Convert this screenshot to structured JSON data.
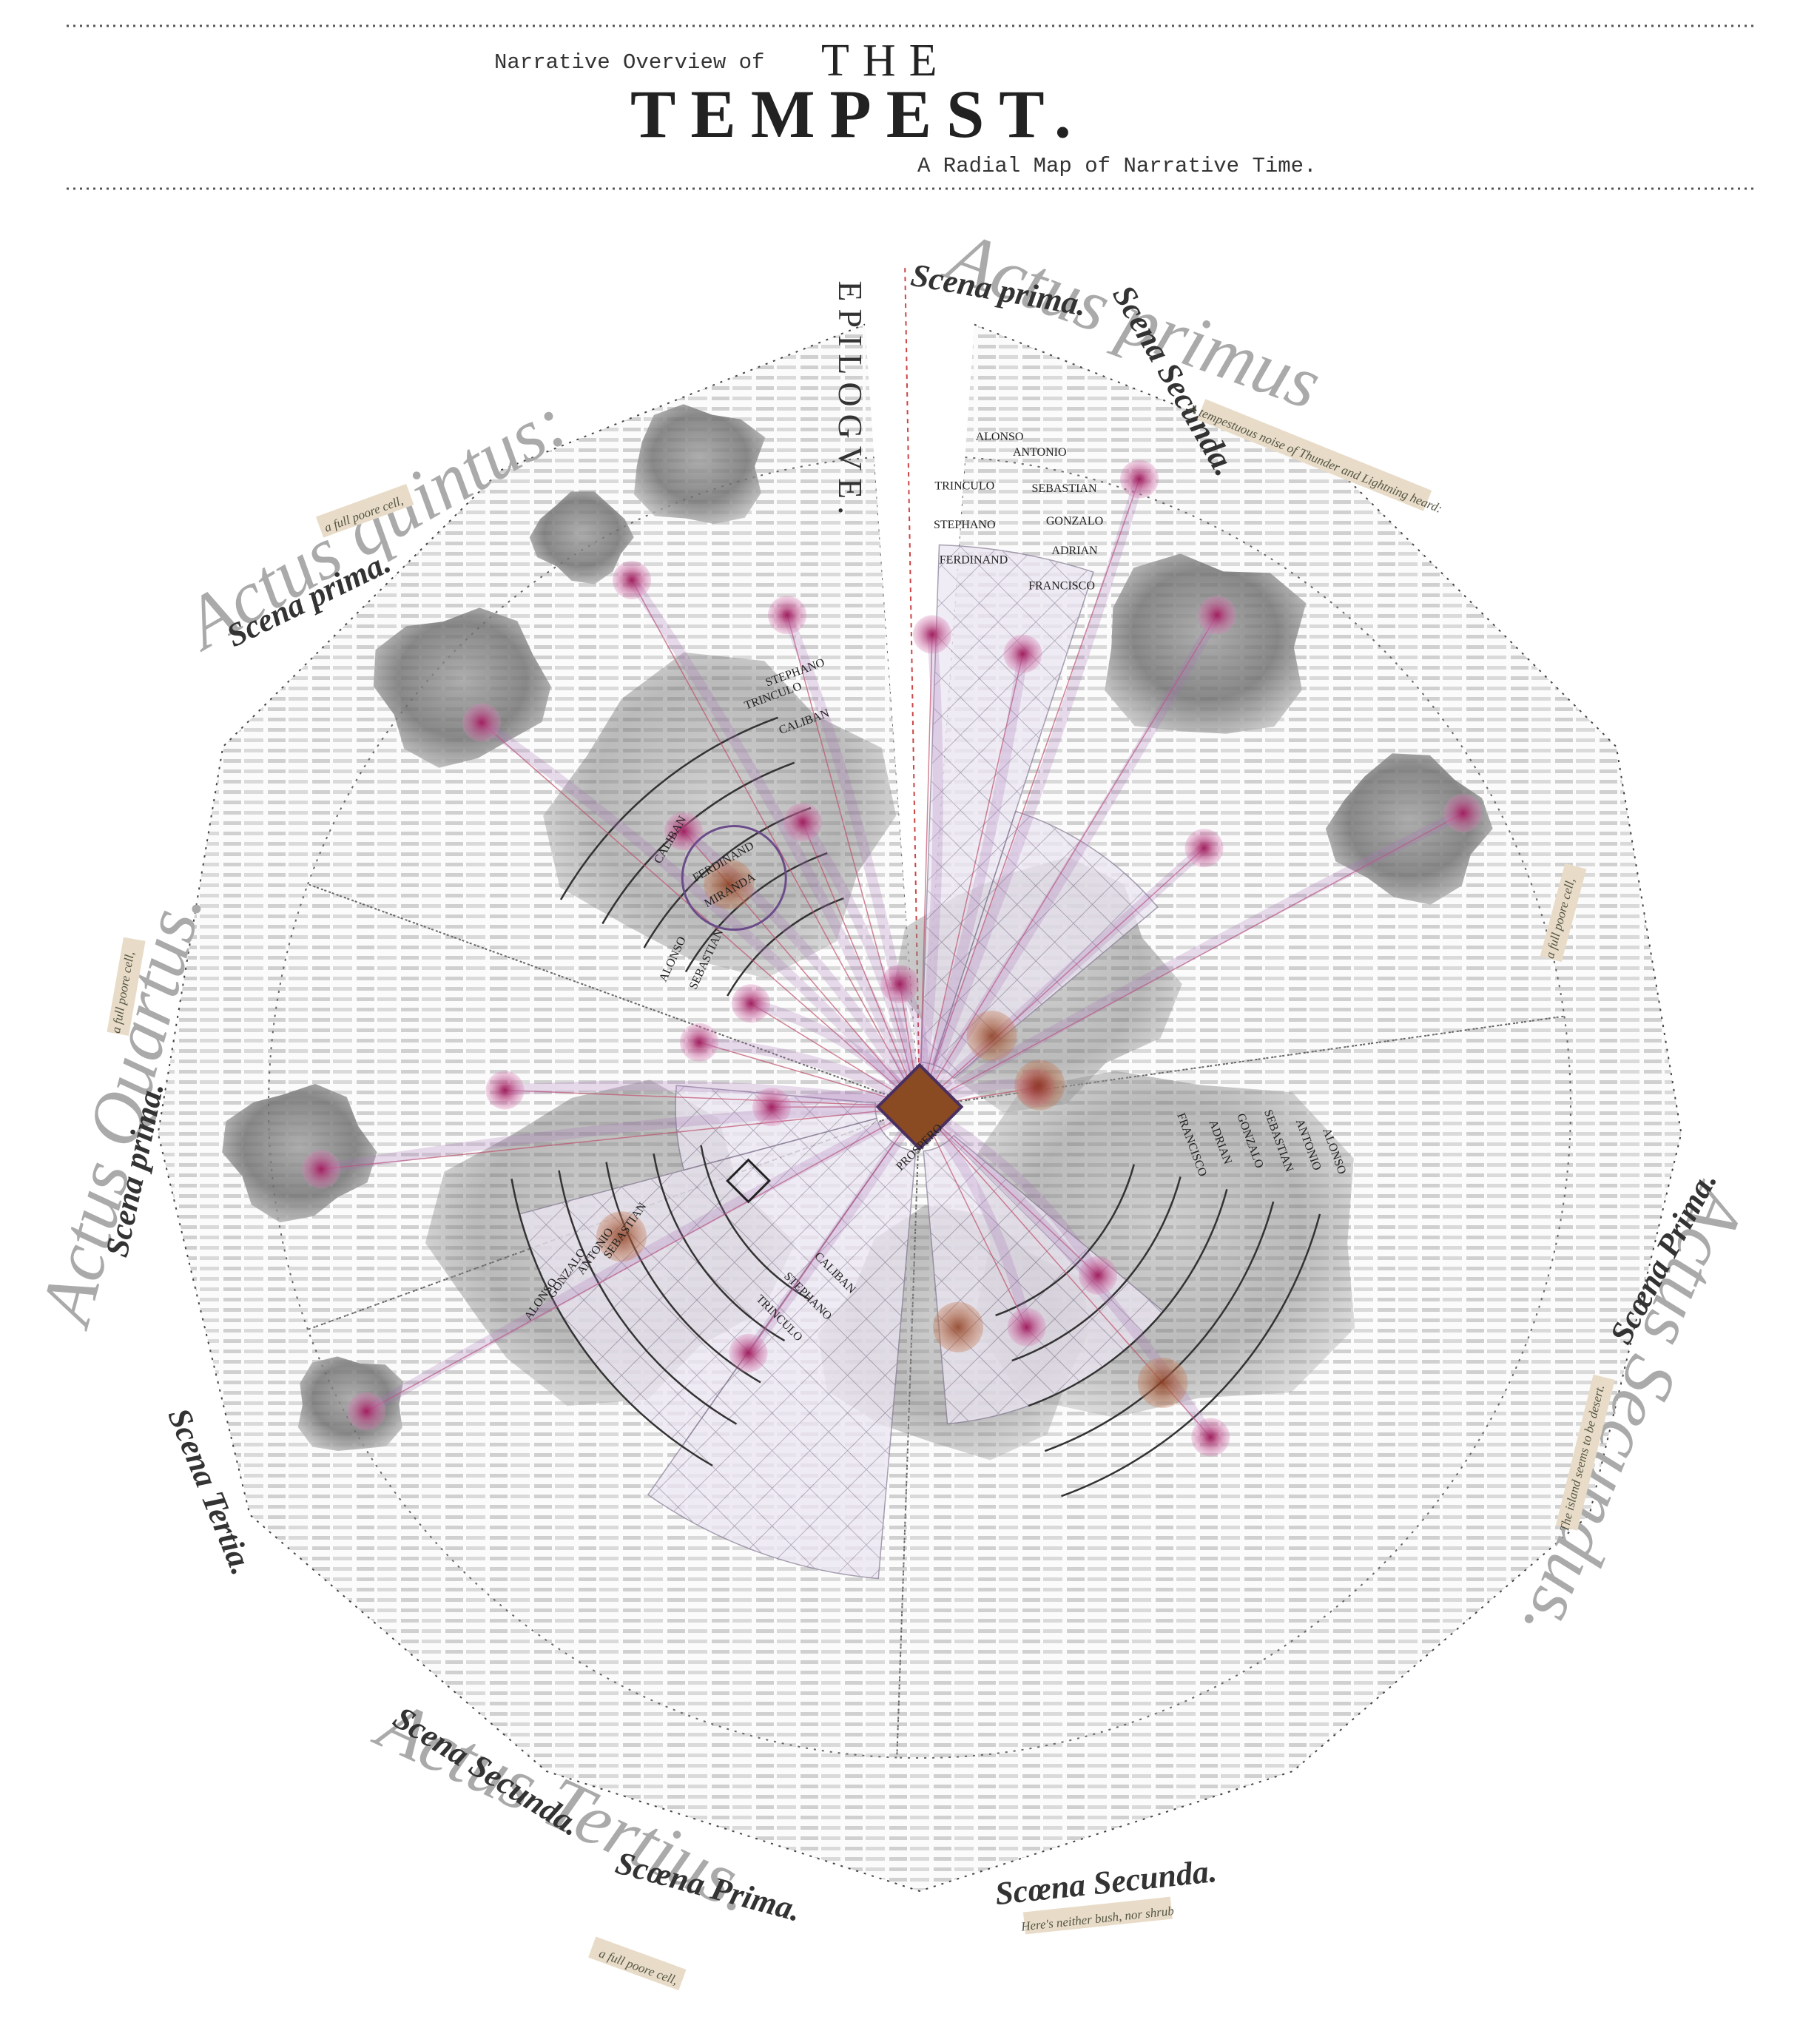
{
  "header": {
    "prefix": "Narrative Overview of",
    "title_line1": "THE",
    "title_line2": "TEMPEST.",
    "subtitle": "A Radial Map of Narrative Time."
  },
  "acts": [
    "Actus primus",
    "Actus Secundus.",
    "Actus Tertius.",
    "Actus Quartus.",
    "Actus quintus:",
    "EPILOGVE."
  ],
  "scenes": [
    "Scena prima.",
    "Scena Secunda.",
    "Scœna Prima.",
    "Scœna Secunda.",
    "Scœna Prima.",
    "Scena Secunda.",
    "Scena Tertia.",
    "Scena prima.",
    "Scena prima."
  ],
  "quotes": [
    "A tempestuous noise of Thunder and Lightning heard:",
    "a full poore cell,",
    "Here's neither bush, nor shrub",
    "The island seems to be desert."
  ],
  "characters": [
    "ALONSO",
    "ANTONIO",
    "TRINCULO",
    "SEBASTIAN",
    "STEPHANO",
    "GONZALO",
    "FERDINAND",
    "ADRIAN",
    "FRANCISCO",
    "CALIBAN",
    "PROSPERO",
    "MIRANDA"
  ]
}
